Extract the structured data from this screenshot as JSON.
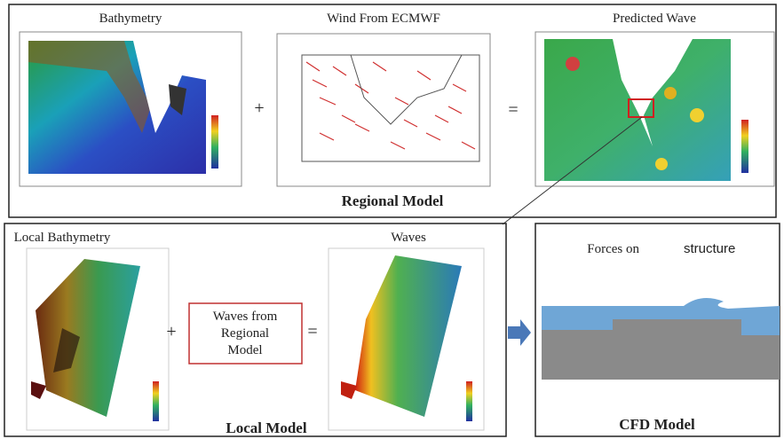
{
  "regional_model": {
    "label": "Regional Model",
    "panels": [
      {
        "title": "Bathymetry"
      },
      {
        "title": "Wind From ECMWF"
      },
      {
        "title": "Predicted Wave"
      }
    ],
    "operators": [
      "+",
      "="
    ]
  },
  "local_model": {
    "label": "Local Model",
    "panels": [
      {
        "title": "Local Bathymetry"
      },
      {
        "title": "Waves"
      }
    ],
    "input_box": {
      "lines": [
        "Waves from",
        "Regional",
        "Model"
      ]
    },
    "operators": [
      "+",
      "="
    ]
  },
  "cfd_model": {
    "label": "CFD Model",
    "title_part1": "Forces on",
    "title_part2": "structure"
  }
}
